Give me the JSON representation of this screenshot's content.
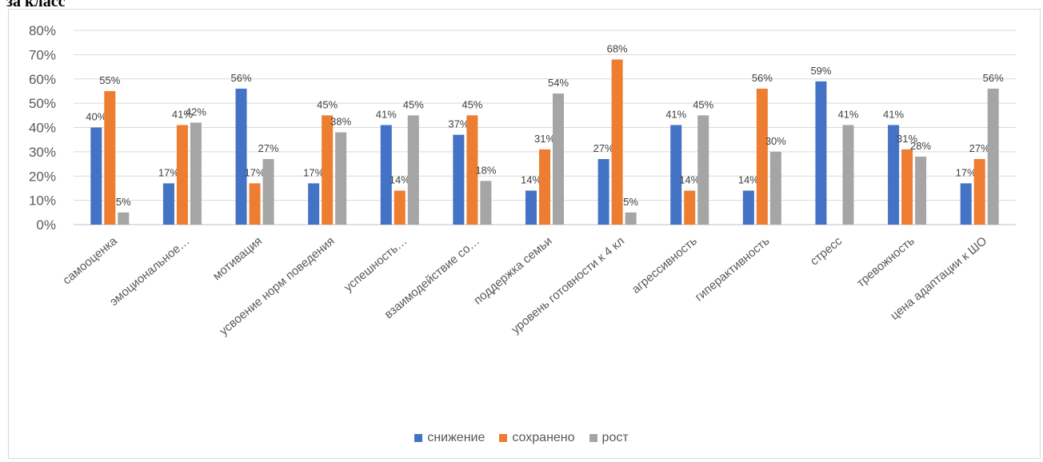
{
  "heading": "за класс",
  "colors": {
    "снижение": "#4472c4",
    "сохранено": "#ed7d31",
    "рост": "#a5a5a5",
    "grid": "#d9d9d9",
    "axis": "#595959"
  },
  "chart_data": {
    "type": "bar",
    "title": "",
    "xlabel": "",
    "ylabel": "",
    "ylim": [
      0,
      80
    ],
    "yticks": [
      0,
      10,
      20,
      30,
      40,
      50,
      60,
      70,
      80
    ],
    "ytick_labels": [
      "0%",
      "10%",
      "20%",
      "30%",
      "40%",
      "50%",
      "60%",
      "70%",
      "80%"
    ],
    "grid": true,
    "legend_position": "bottom",
    "categories": [
      "самооценка",
      "эмоциональное…",
      "мотивация",
      "усвоение норм поведения",
      "успешность…",
      "взаимодействие со…",
      "поддержка семьи",
      "уровень готовности к 4 кл",
      "агрессивность",
      "гиперактивность",
      "стресс",
      "тревожность",
      "цена адаптации к ШО"
    ],
    "series": [
      {
        "name": "снижение",
        "values": [
          40,
          17,
          56,
          17,
          41,
          37,
          14,
          27,
          41,
          14,
          59,
          41,
          17
        ]
      },
      {
        "name": "сохранено",
        "values": [
          55,
          41,
          17,
          45,
          14,
          45,
          31,
          68,
          14,
          56,
          null,
          31,
          27
        ]
      },
      {
        "name": "рост",
        "values": [
          5,
          42,
          27,
          38,
          45,
          18,
          54,
          5,
          45,
          30,
          41,
          28,
          56
        ]
      }
    ],
    "value_suffix": "%"
  }
}
